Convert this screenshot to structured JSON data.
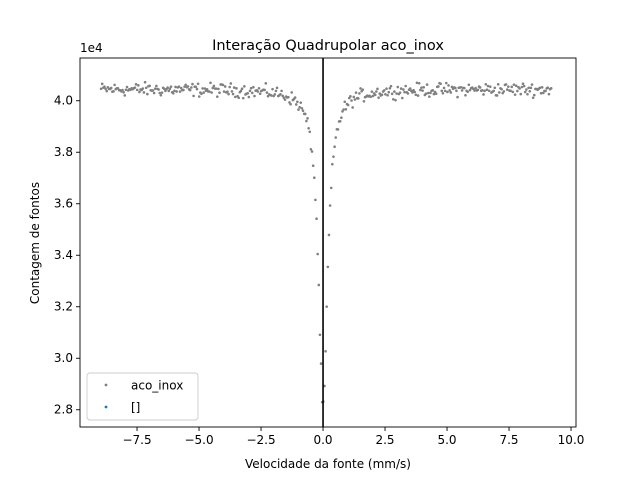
{
  "chart_data": {
    "type": "scatter",
    "title": "Interação Quadrupolar aco_inox",
    "xlabel": "Velocidade da fonte (mm/s)",
    "ylabel": "Contagem de fontos",
    "offset_label": "1e4",
    "xlim": [
      -9.8,
      10.2
    ],
    "ylim": [
      27330,
      41660
    ],
    "xticks": [
      -7.5,
      -5.0,
      -2.5,
      0.0,
      2.5,
      5.0,
      7.5,
      10.0
    ],
    "xtick_labels": [
      "−7.5",
      "−5.0",
      "−2.5",
      "0.0",
      "2.5",
      "5.0",
      "7.5",
      "10.0"
    ],
    "yticks": [
      28000,
      30000,
      32000,
      34000,
      36000,
      38000,
      40000
    ],
    "ytick_labels": [
      "2.8",
      "3.0",
      "3.2",
      "3.4",
      "3.6",
      "3.8",
      "4.0"
    ],
    "vline_x": 0.0,
    "grid": false,
    "legend_position": "lower-left",
    "series": [
      {
        "name": "aco_inox",
        "color": "#808080",
        "marker": "circle",
        "x_range": [
          -8.95,
          9.2
        ],
        "n_points": 400,
        "baseline": 40450,
        "noise": 180,
        "dip_center": 0.0,
        "dip_depth": 12400,
        "dip_hwhm": 0.22
      },
      {
        "name": "[]",
        "color": "#1f77b4",
        "marker": "circle",
        "points": []
      }
    ]
  }
}
